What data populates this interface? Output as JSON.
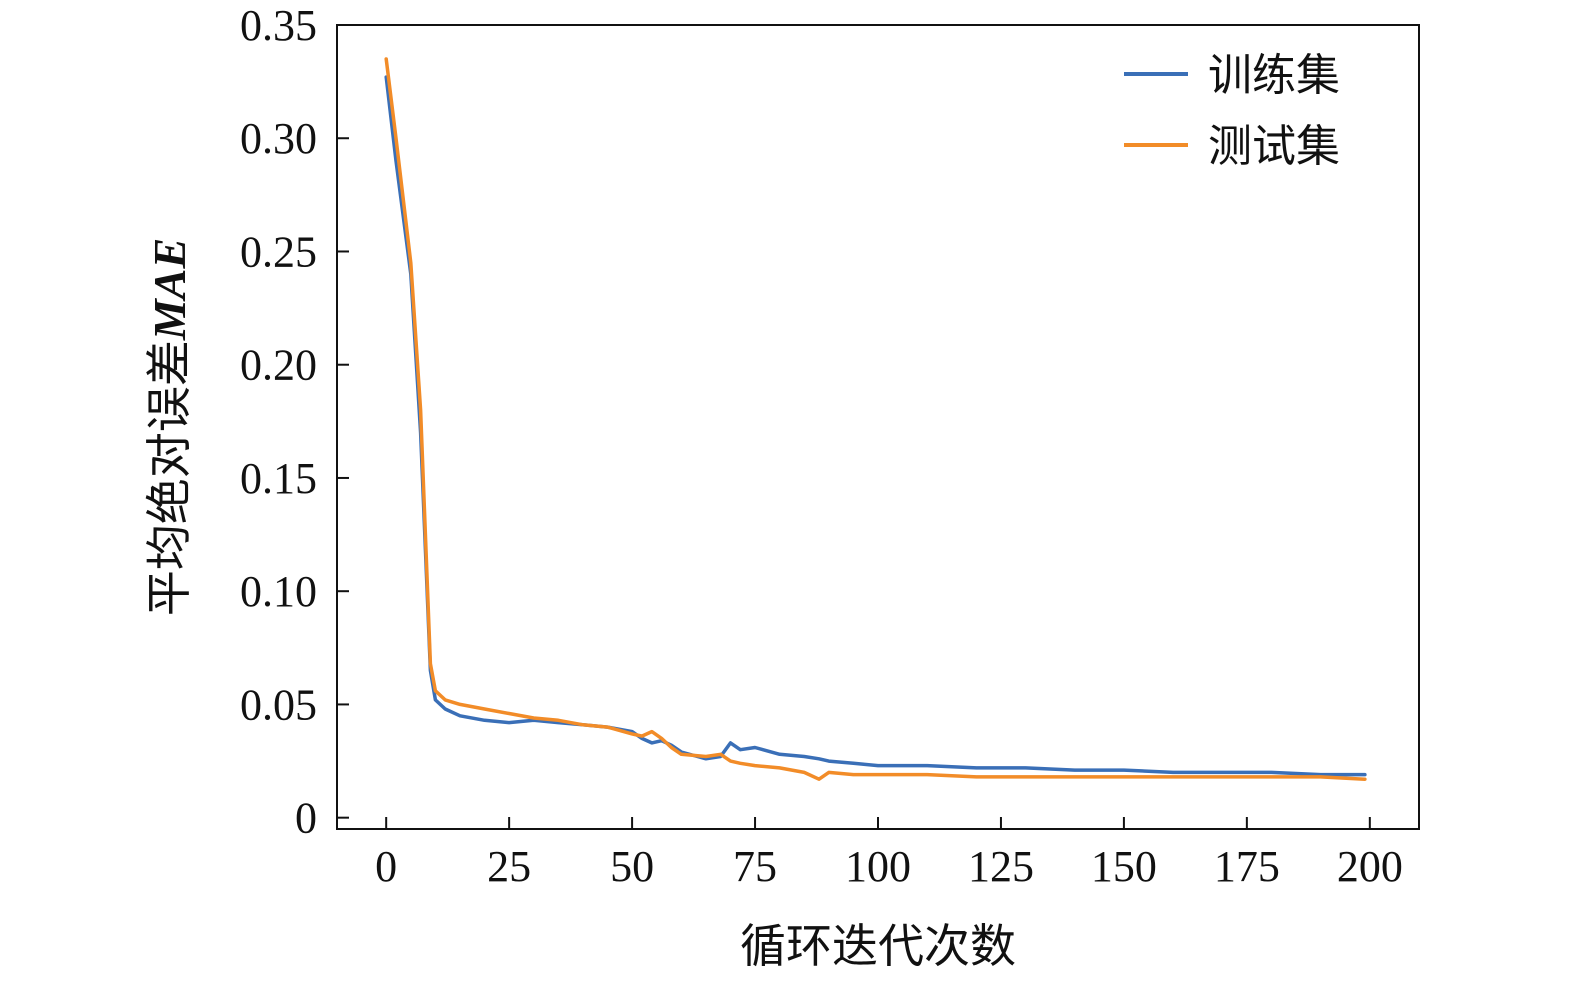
{
  "chart_data": {
    "type": "line",
    "title": "",
    "xlabel": "循环迭代次数",
    "ylabel_prefix": "平均绝对误差",
    "ylabel_emphasis": "MAE",
    "xlim": [
      -10,
      210
    ],
    "ylim": [
      -0.005,
      0.35
    ],
    "xticks": [
      0,
      25,
      50,
      75,
      100,
      125,
      150,
      175,
      200
    ],
    "xtick_labels": [
      "0",
      "25",
      "50",
      "75",
      "100",
      "125",
      "150",
      "175",
      "200"
    ],
    "yticks": [
      0,
      0.05,
      0.1,
      0.15,
      0.2,
      0.25,
      0.3,
      0.35
    ],
    "ytick_labels": [
      "0",
      "0.05",
      "0.10",
      "0.15",
      "0.20",
      "0.25",
      "0.30",
      "0.35"
    ],
    "grid": false,
    "legend_position": "top-right",
    "x": [
      0,
      2,
      5,
      7,
      9,
      10,
      12,
      15,
      20,
      25,
      30,
      35,
      40,
      45,
      50,
      52,
      54,
      56,
      58,
      60,
      65,
      68,
      70,
      72,
      75,
      80,
      85,
      88,
      90,
      95,
      100,
      110,
      120,
      130,
      140,
      150,
      160,
      170,
      180,
      190,
      199
    ],
    "series": [
      {
        "name": "训练集",
        "color": "#3a6fb7",
        "values": [
          0.327,
          0.29,
          0.24,
          0.17,
          0.065,
          0.052,
          0.048,
          0.045,
          0.043,
          0.042,
          0.043,
          0.042,
          0.041,
          0.04,
          0.038,
          0.035,
          0.033,
          0.034,
          0.032,
          0.029,
          0.026,
          0.027,
          0.033,
          0.03,
          0.031,
          0.028,
          0.027,
          0.026,
          0.025,
          0.024,
          0.023,
          0.023,
          0.022,
          0.022,
          0.021,
          0.021,
          0.02,
          0.02,
          0.02,
          0.019,
          0.019
        ]
      },
      {
        "name": "测试集",
        "color": "#f28c28",
        "values": [
          0.335,
          0.3,
          0.245,
          0.18,
          0.068,
          0.056,
          0.052,
          0.05,
          0.048,
          0.046,
          0.044,
          0.043,
          0.041,
          0.04,
          0.037,
          0.036,
          0.038,
          0.035,
          0.031,
          0.028,
          0.027,
          0.028,
          0.025,
          0.024,
          0.023,
          0.022,
          0.02,
          0.017,
          0.02,
          0.019,
          0.019,
          0.019,
          0.018,
          0.018,
          0.018,
          0.018,
          0.018,
          0.018,
          0.018,
          0.018,
          0.017
        ]
      }
    ]
  }
}
